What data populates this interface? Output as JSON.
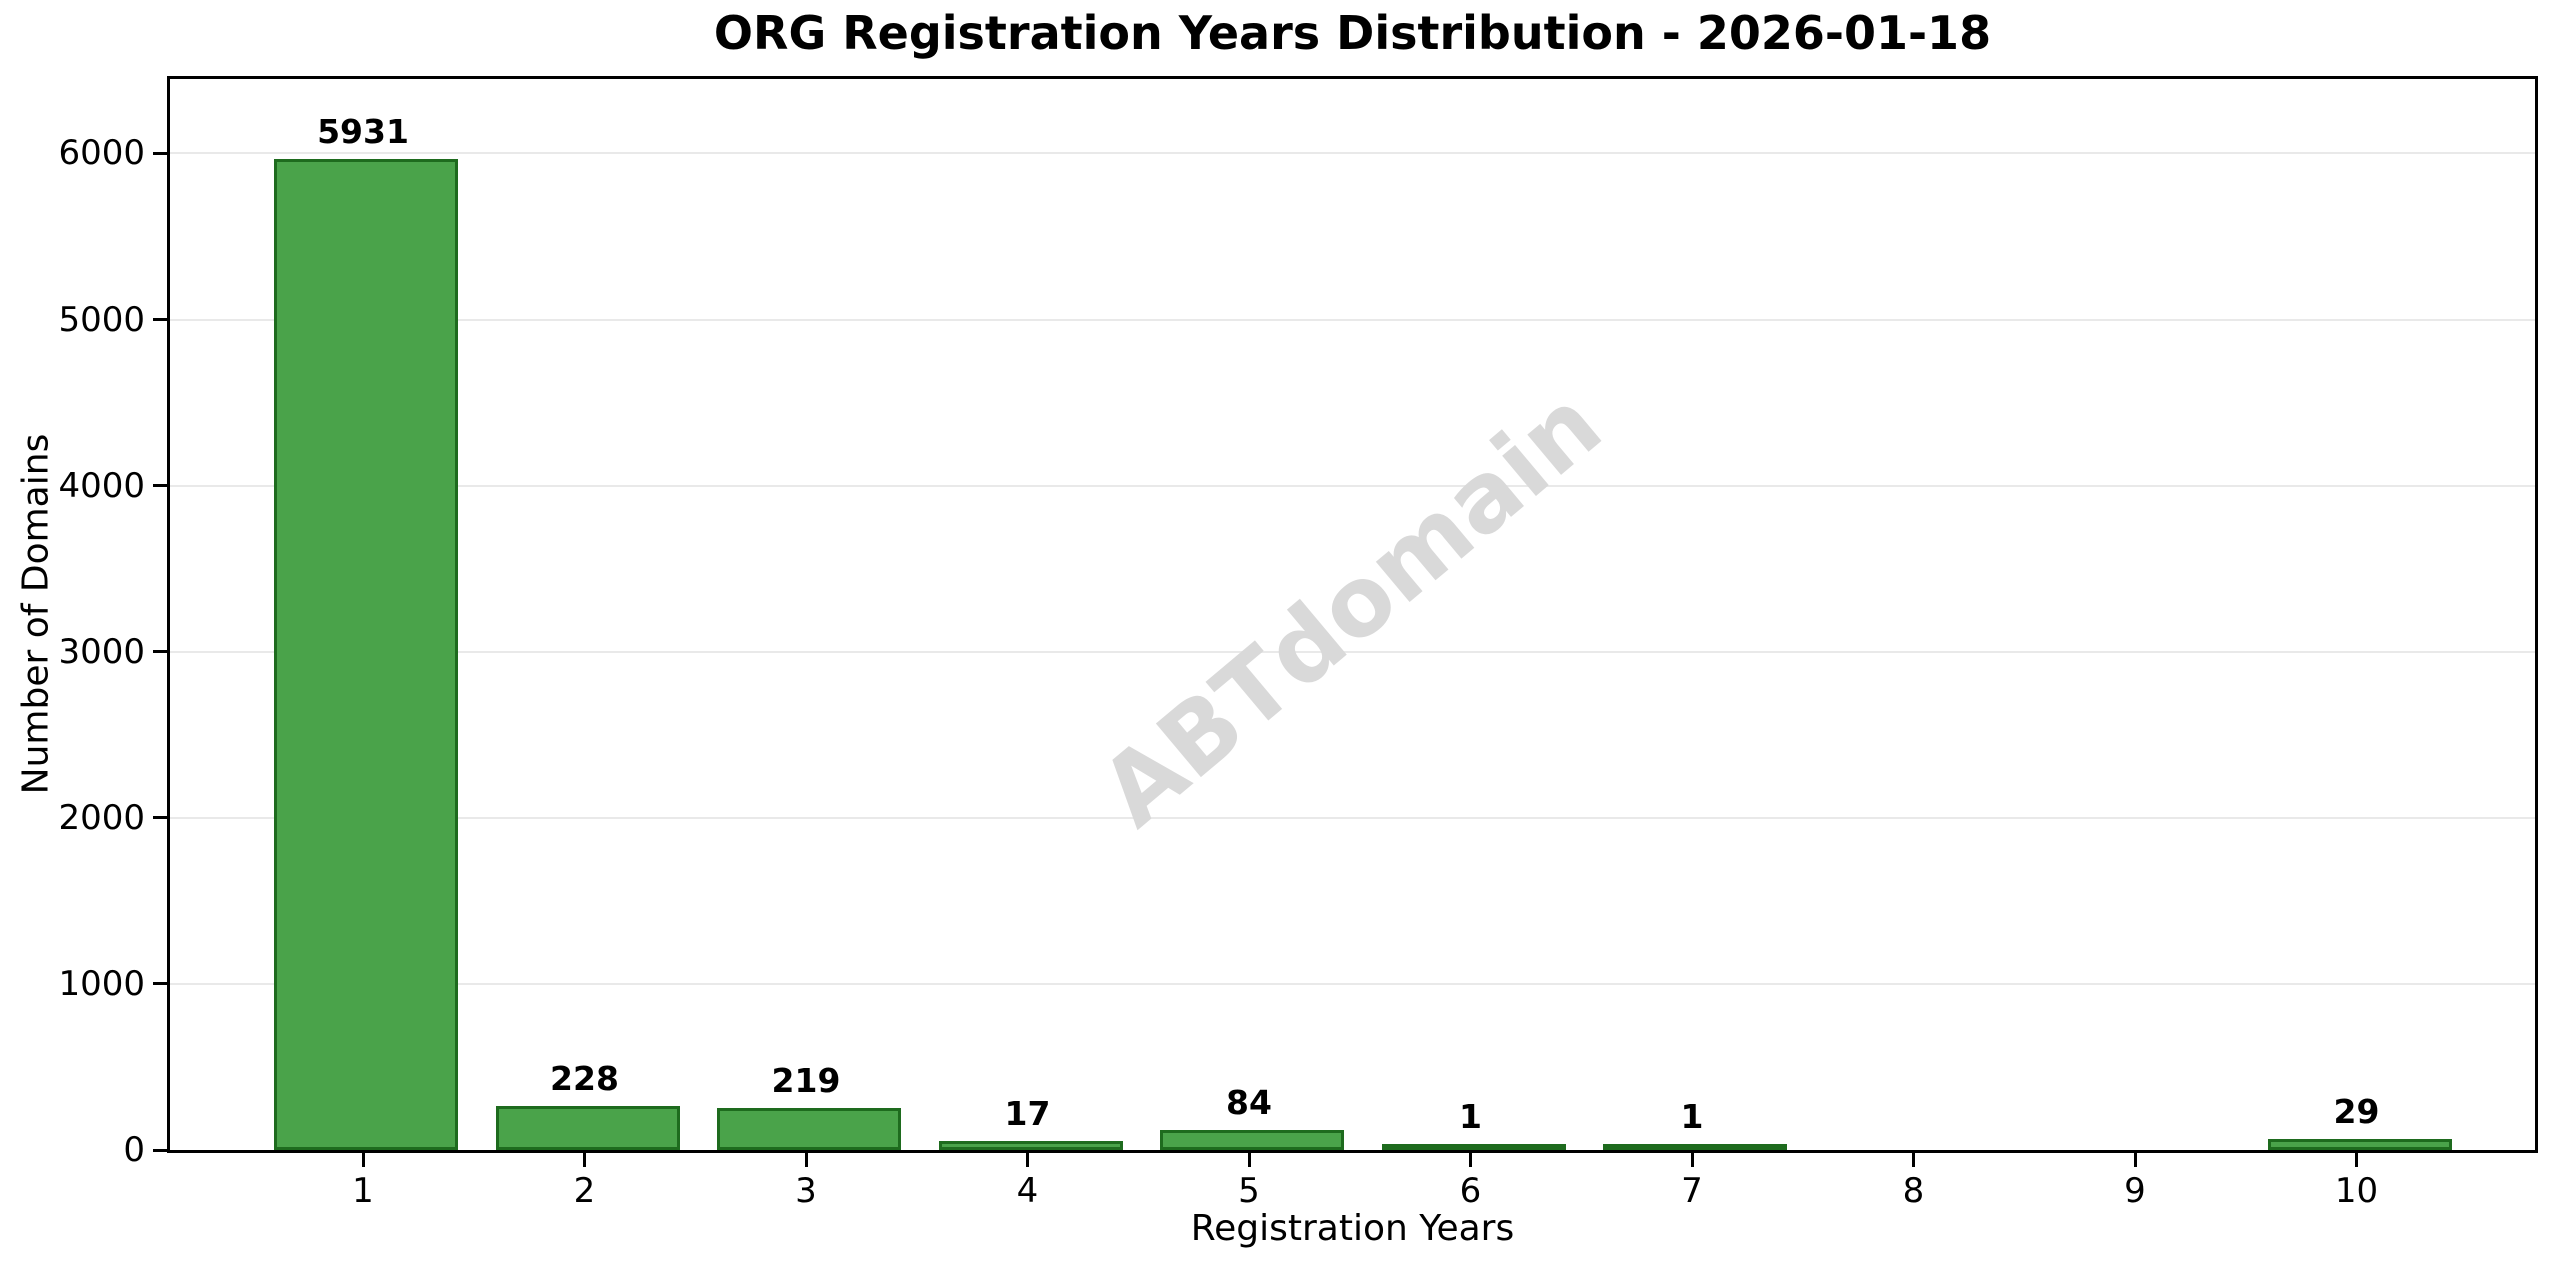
{
  "chart_data": {
    "type": "bar",
    "title": "ORG Registration Years Distribution - 2026-01-18",
    "xlabel": "Registration Years",
    "ylabel": "Number of Domains",
    "categories": [
      "1",
      "2",
      "3",
      "4",
      "5",
      "6",
      "7",
      "8",
      "9",
      "10"
    ],
    "values": [
      5931,
      228,
      219,
      17,
      84,
      1,
      1,
      0,
      0,
      29
    ],
    "bar_labels": [
      "5931",
      "228",
      "219",
      "17",
      "84",
      "1",
      "1",
      "",
      "",
      "29"
    ],
    "yticks": [
      0,
      1000,
      2000,
      3000,
      4000,
      5000,
      6000
    ],
    "ylim": [
      0,
      6448
    ],
    "grid": "horizontal",
    "legend": "none",
    "watermark": "ABTdomain",
    "bar_color": "#4aa34a",
    "bar_edge_color": "#1e6b1e",
    "grid_color": "#e9e9e9",
    "axis_color": "#000000"
  }
}
